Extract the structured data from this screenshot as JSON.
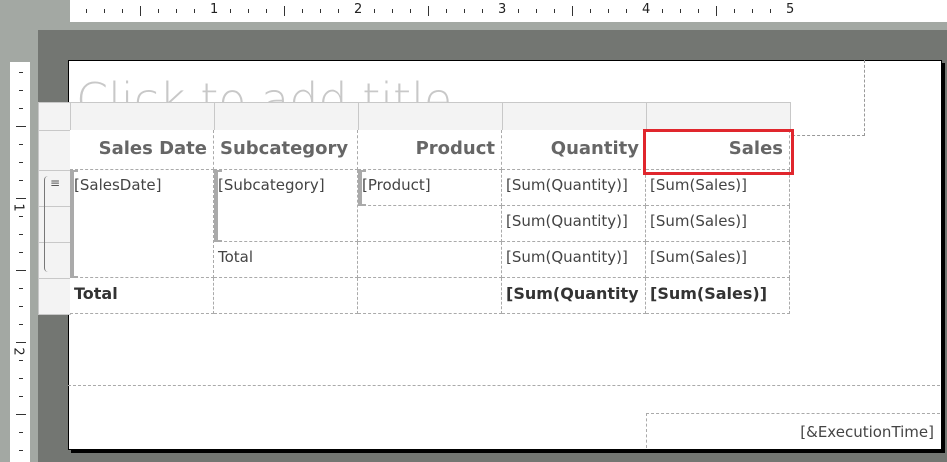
{
  "ruler": {
    "horizontal_labels": [
      "1",
      "2",
      "3",
      "4",
      "5"
    ],
    "vertical_labels": [
      "1",
      "2"
    ]
  },
  "report": {
    "title_placeholder": "Click to add title",
    "table": {
      "headers": [
        "Sales Date",
        "Subcategory",
        "Product",
        "Quantity",
        "Sales"
      ],
      "rows": [
        [
          "[SalesDate]",
          "[Subcategory]",
          "[Product]",
          "[Sum(Quantity)]",
          "[Sum(Sales)]"
        ],
        [
          "",
          "",
          "",
          "[Sum(Quantity)]",
          "[Sum(Sales)]"
        ],
        [
          "",
          "Total",
          "",
          "[Sum(Quantity)]",
          "[Sum(Sales)]"
        ],
        [
          "Total",
          "",
          "",
          "[Sum(Quantity",
          "[Sum(Sales)]"
        ]
      ],
      "selected_cell": "Sales"
    },
    "footer": {
      "execution_time": "[&ExecutionTime]"
    }
  },
  "colors": {
    "selection": "#e0262d",
    "canvas": "#737672",
    "field_text": "#444444"
  }
}
